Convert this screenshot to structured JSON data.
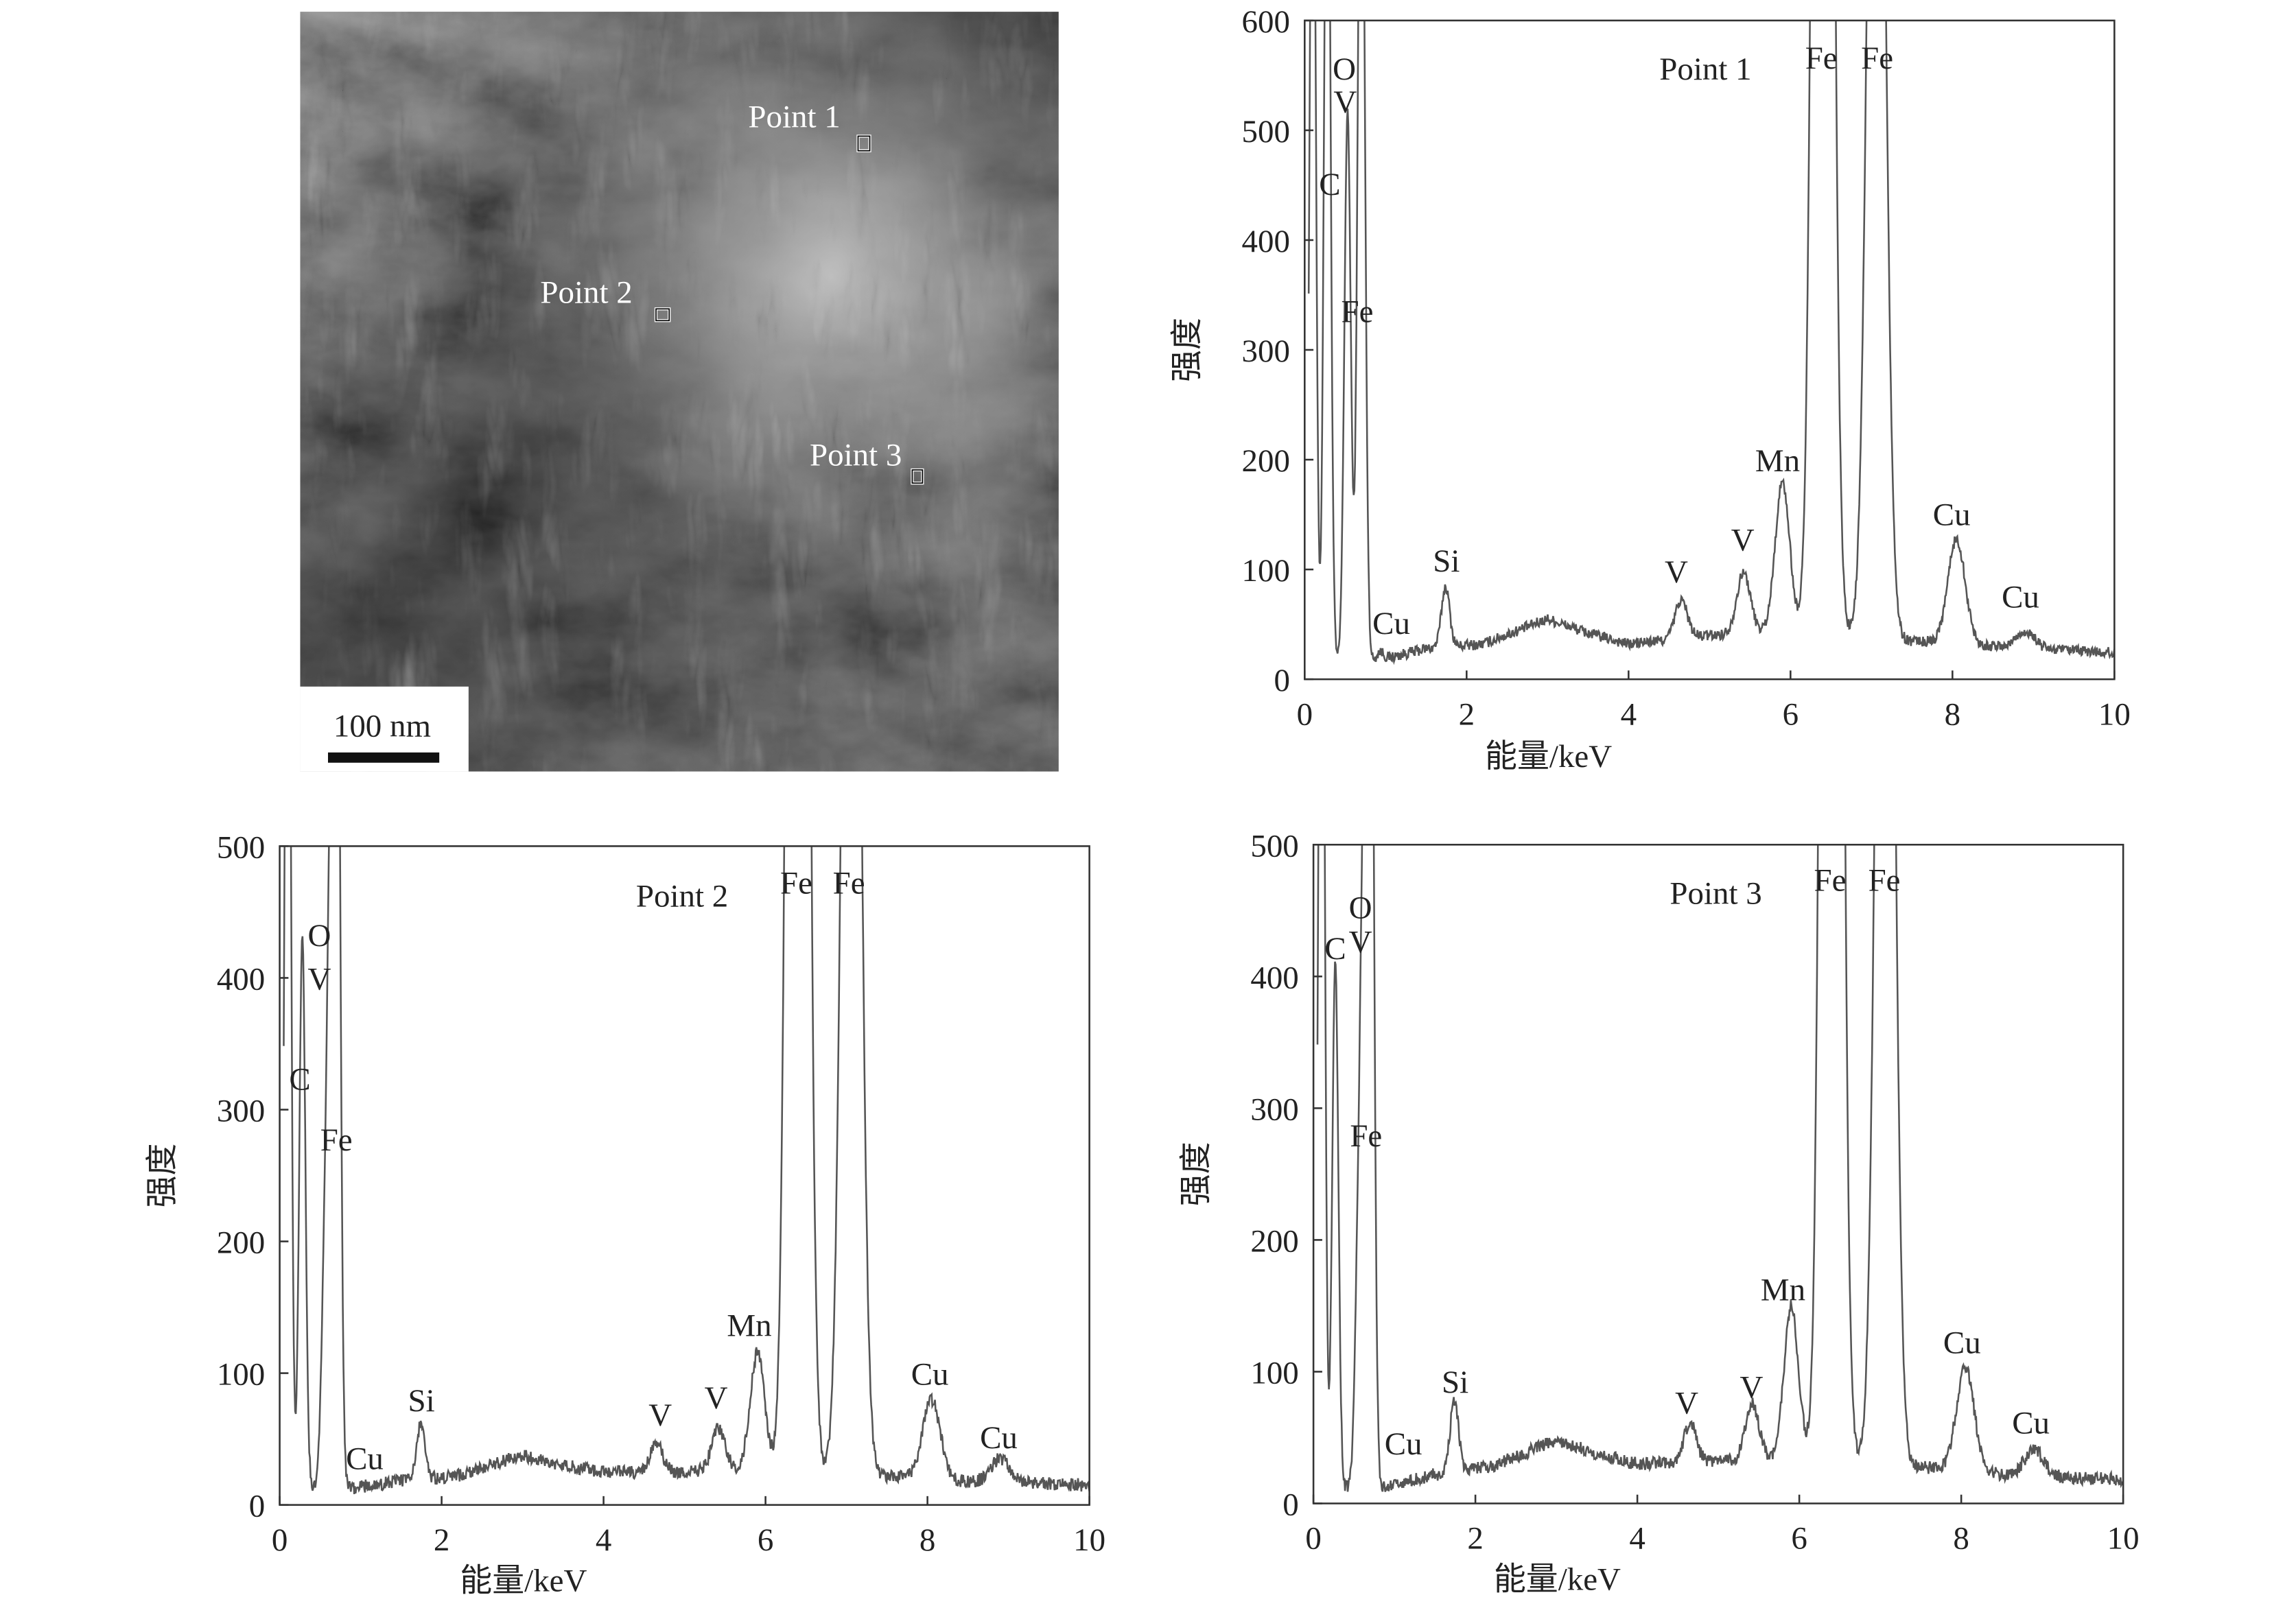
{
  "micrograph": {
    "scale_bar": "100 nm",
    "points": [
      {
        "label": "Point 1"
      },
      {
        "label": "Point 2"
      },
      {
        "label": "Point 3"
      }
    ]
  },
  "chart_data": [
    {
      "type": "line",
      "title": "Point 1",
      "xlabel": "能量/keV",
      "ylabel": "强度",
      "xlim": [
        0,
        10
      ],
      "ylim": [
        0,
        600
      ],
      "xticks": [
        0,
        2,
        4,
        6,
        8,
        10
      ],
      "yticks": [
        0,
        100,
        200,
        300,
        400,
        500,
        600
      ],
      "grid": false,
      "line_color": "#555555",
      "peaks": [
        {
          "energy": 0.1,
          "intensity": 900
        },
        {
          "energy": 0.28,
          "intensity": 900
        },
        {
          "energy": 0.53,
          "intensity": 500
        },
        {
          "energy": 0.7,
          "intensity": 900
        },
        {
          "energy": 0.93,
          "intensity": 8
        },
        {
          "energy": 1.74,
          "intensity": 55
        },
        {
          "energy": 4.65,
          "intensity": 35
        },
        {
          "energy": 5.42,
          "intensity": 55
        },
        {
          "energy": 5.9,
          "intensity": 135
        },
        {
          "energy": 6.4,
          "intensity": 2500
        },
        {
          "energy": 7.06,
          "intensity": 1200
        },
        {
          "energy": 8.05,
          "intensity": 95
        },
        {
          "energy": 8.9,
          "intensity": 15
        }
      ],
      "background": [
        [
          0.8,
          15
        ],
        [
          1.5,
          28
        ],
        [
          2.2,
          32
        ],
        [
          3.0,
          55
        ],
        [
          3.5,
          42
        ],
        [
          4.0,
          32
        ],
        [
          5.0,
          40
        ],
        [
          6.0,
          45
        ],
        [
          7.5,
          35
        ],
        [
          8.5,
          30
        ],
        [
          10.0,
          24
        ]
      ],
      "annotations": [
        {
          "text": "Point 1",
          "x": 4.95,
          "y": 557
        },
        {
          "text": "O",
          "x": 0.49,
          "y": 557
        },
        {
          "text": "V",
          "x": 0.5,
          "y": 527
        },
        {
          "text": "C",
          "x": 0.31,
          "y": 452
        },
        {
          "text": "Fe",
          "x": 0.65,
          "y": 336
        },
        {
          "text": "Fe",
          "x": 6.38,
          "y": 567
        },
        {
          "text": "Fe",
          "x": 7.07,
          "y": 567
        },
        {
          "text": "Mn",
          "x": 5.84,
          "y": 200
        },
        {
          "text": "Cu",
          "x": 7.99,
          "y": 151
        },
        {
          "text": "Cu",
          "x": 8.84,
          "y": 76
        },
        {
          "text": "V",
          "x": 5.41,
          "y": 128
        },
        {
          "text": "V",
          "x": 4.59,
          "y": 99
        },
        {
          "text": "Si",
          "x": 1.75,
          "y": 109
        },
        {
          "text": "Cu",
          "x": 1.07,
          "y": 52
        }
      ]
    },
    {
      "type": "line",
      "title": "Point 2",
      "xlabel": "能量/keV",
      "ylabel": "强度",
      "xlim": [
        0,
        10
      ],
      "ylim": [
        0,
        500
      ],
      "xticks": [
        0,
        2,
        4,
        6,
        8,
        10
      ],
      "yticks": [
        0,
        100,
        200,
        300,
        400,
        500
      ],
      "grid": false,
      "line_color": "#555555",
      "peaks": [
        {
          "energy": 0.1,
          "intensity": 900
        },
        {
          "energy": 0.28,
          "intensity": 420
        },
        {
          "energy": 0.55,
          "intensity": 130
        },
        {
          "energy": 0.62,
          "intensity": 380
        },
        {
          "energy": 0.7,
          "intensity": 900
        },
        {
          "energy": 1.74,
          "intensity": 42
        },
        {
          "energy": 4.65,
          "intensity": 22
        },
        {
          "energy": 5.42,
          "intensity": 32
        },
        {
          "energy": 5.9,
          "intensity": 88
        },
        {
          "energy": 6.4,
          "intensity": 2500
        },
        {
          "energy": 7.06,
          "intensity": 1200
        },
        {
          "energy": 8.05,
          "intensity": 60
        },
        {
          "energy": 8.9,
          "intensity": 18
        }
      ],
      "background": [
        [
          0.8,
          12
        ],
        [
          1.5,
          18
        ],
        [
          2.2,
          22
        ],
        [
          3.0,
          38
        ],
        [
          3.5,
          30
        ],
        [
          4.0,
          25
        ],
        [
          5.0,
          25
        ],
        [
          6.0,
          28
        ],
        [
          7.5,
          22
        ],
        [
          8.5,
          18
        ],
        [
          10.0,
          15
        ]
      ],
      "annotations": [
        {
          "text": "Point 2",
          "x": 4.97,
          "y": 463
        },
        {
          "text": "O",
          "x": 0.49,
          "y": 433
        },
        {
          "text": "V",
          "x": 0.49,
          "y": 400
        },
        {
          "text": "C",
          "x": 0.25,
          "y": 324
        },
        {
          "text": "Fe",
          "x": 0.7,
          "y": 278
        },
        {
          "text": "Fe",
          "x": 6.38,
          "y": 473
        },
        {
          "text": "Fe",
          "x": 7.03,
          "y": 473
        },
        {
          "text": "Mn",
          "x": 5.8,
          "y": 137
        },
        {
          "text": "Cu",
          "x": 8.03,
          "y": 100
        },
        {
          "text": "Cu",
          "x": 8.88,
          "y": 52
        },
        {
          "text": "V",
          "x": 5.39,
          "y": 82
        },
        {
          "text": "V",
          "x": 4.7,
          "y": 69
        },
        {
          "text": "Si",
          "x": 1.75,
          "y": 80
        },
        {
          "text": "Cu",
          "x": 1.05,
          "y": 36
        }
      ]
    },
    {
      "type": "line",
      "title": "Point 3",
      "xlabel": "能量/keV",
      "ylabel": "强度",
      "xlim": [
        0,
        10
      ],
      "ylim": [
        0,
        500
      ],
      "xticks": [
        0,
        2,
        4,
        6,
        8,
        10
      ],
      "yticks": [
        0,
        100,
        200,
        300,
        400,
        500
      ],
      "grid": false,
      "line_color": "#555555",
      "peaks": [
        {
          "energy": 0.1,
          "intensity": 900
        },
        {
          "energy": 0.27,
          "intensity": 400
        },
        {
          "energy": 0.55,
          "intensity": 150
        },
        {
          "energy": 0.62,
          "intensity": 420
        },
        {
          "energy": 0.7,
          "intensity": 900
        },
        {
          "energy": 1.74,
          "intensity": 55
        },
        {
          "energy": 4.65,
          "intensity": 30
        },
        {
          "energy": 5.42,
          "intensity": 42
        },
        {
          "energy": 5.9,
          "intensity": 115
        },
        {
          "energy": 6.4,
          "intensity": 2500
        },
        {
          "energy": 7.06,
          "intensity": 1200
        },
        {
          "energy": 8.05,
          "intensity": 80
        },
        {
          "energy": 8.9,
          "intensity": 20
        }
      ],
      "background": [
        [
          0.8,
          12
        ],
        [
          1.5,
          22
        ],
        [
          2.2,
          28
        ],
        [
          3.0,
          48
        ],
        [
          3.5,
          38
        ],
        [
          4.0,
          30
        ],
        [
          5.0,
          32
        ],
        [
          6.0,
          35
        ],
        [
          7.5,
          28
        ],
        [
          8.5,
          22
        ],
        [
          10.0,
          18
        ]
      ],
      "annotations": [
        {
          "text": "Point 3",
          "x": 4.97,
          "y": 464
        },
        {
          "text": "O",
          "x": 0.58,
          "y": 453
        },
        {
          "text": "C",
          "x": 0.27,
          "y": 422
        },
        {
          "text": "V",
          "x": 0.58,
          "y": 427
        },
        {
          "text": "Fe",
          "x": 0.65,
          "y": 280
        },
        {
          "text": "Fe",
          "x": 6.38,
          "y": 474
        },
        {
          "text": "Fe",
          "x": 7.05,
          "y": 474
        },
        {
          "text": "Mn",
          "x": 5.8,
          "y": 163
        },
        {
          "text": "Cu",
          "x": 8.01,
          "y": 123
        },
        {
          "text": "Cu",
          "x": 8.86,
          "y": 62
        },
        {
          "text": "V",
          "x": 5.41,
          "y": 89
        },
        {
          "text": "V",
          "x": 4.61,
          "y": 77
        },
        {
          "text": "Si",
          "x": 1.75,
          "y": 93
        },
        {
          "text": "Cu",
          "x": 1.11,
          "y": 46
        }
      ]
    }
  ]
}
